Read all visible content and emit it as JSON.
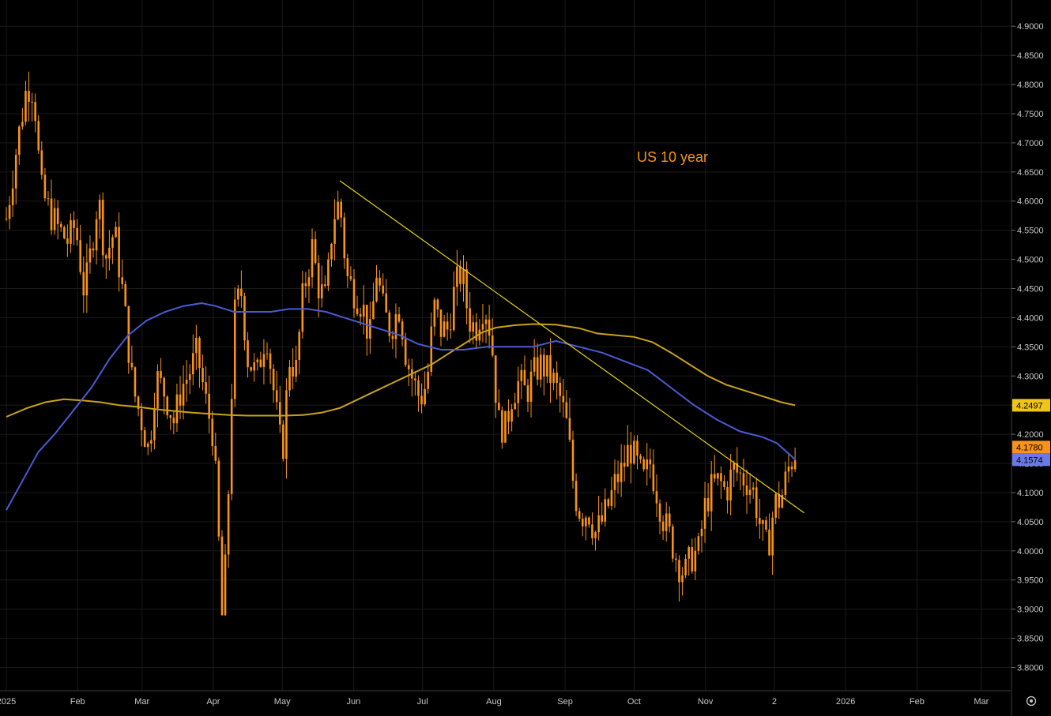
{
  "chart_data": {
    "type": "candlestick",
    "annotation": "US 10 year",
    "ylim": [
      3.76,
      4.945
    ],
    "y_ticks": [
      "4.9000",
      "4.8500",
      "4.8000",
      "4.7500",
      "4.7000",
      "4.6500",
      "4.6000",
      "4.5500",
      "4.5000",
      "4.4500",
      "4.4000",
      "4.3500",
      "4.3000",
      "4.2500",
      "4.2000",
      "4.1500",
      "4.1000",
      "4.0500",
      "4.0000",
      "3.9500",
      "3.9000",
      "3.8500",
      "3.8000"
    ],
    "x_ticks": [
      "2025",
      "Feb",
      "Mar",
      "Apr",
      "May",
      "Jun",
      "Jul",
      "Aug",
      "Sep",
      "Oct",
      "Nov",
      "2",
      "2026",
      "Feb",
      "Mar"
    ],
    "x_tick_days": [
      1,
      32,
      60,
      91,
      121,
      152,
      182,
      213,
      244,
      274,
      305,
      335,
      366,
      397,
      425
    ],
    "x_range_days": [
      1,
      450
    ],
    "price_anchors": [
      [
        1,
        4.57
      ],
      [
        5,
        4.68
      ],
      [
        10,
        4.8
      ],
      [
        13,
        4.79
      ],
      [
        16,
        4.62
      ],
      [
        20,
        4.58
      ],
      [
        24,
        4.55
      ],
      [
        28,
        4.53
      ],
      [
        31,
        4.56
      ],
      [
        35,
        4.44
      ],
      [
        38,
        4.52
      ],
      [
        41,
        4.61
      ],
      [
        44,
        4.5
      ],
      [
        48,
        4.55
      ],
      [
        52,
        4.43
      ],
      [
        56,
        4.28
      ],
      [
        60,
        4.22
      ],
      [
        63,
        4.17
      ],
      [
        66,
        4.3
      ],
      [
        70,
        4.27
      ],
      [
        74,
        4.22
      ],
      [
        77,
        4.28
      ],
      [
        80,
        4.3
      ],
      [
        84,
        4.34
      ],
      [
        88,
        4.25
      ],
      [
        91,
        4.2
      ],
      [
        93,
        4.05
      ],
      [
        95,
        3.87
      ],
      [
        97,
        4.03
      ],
      [
        100,
        4.4
      ],
      [
        103,
        4.45
      ],
      [
        106,
        4.33
      ],
      [
        110,
        4.3
      ],
      [
        114,
        4.38
      ],
      [
        118,
        4.25
      ],
      [
        121,
        4.16
      ],
      [
        124,
        4.33
      ],
      [
        127,
        4.31
      ],
      [
        130,
        4.44
      ],
      [
        134,
        4.52
      ],
      [
        137,
        4.45
      ],
      [
        140,
        4.43
      ],
      [
        143,
        4.57
      ],
      [
        146,
        4.6
      ],
      [
        149,
        4.47
      ],
      [
        153,
        4.44
      ],
      [
        156,
        4.42
      ],
      [
        159,
        4.36
      ],
      [
        162,
        4.48
      ],
      [
        165,
        4.41
      ],
      [
        168,
        4.38
      ],
      [
        172,
        4.42
      ],
      [
        175,
        4.33
      ],
      [
        178,
        4.29
      ],
      [
        181,
        4.26
      ],
      [
        184,
        4.29
      ],
      [
        187,
        4.42
      ],
      [
        190,
        4.38
      ],
      [
        193,
        4.38
      ],
      [
        196,
        4.45
      ],
      [
        199,
        4.48
      ],
      [
        202,
        4.4
      ],
      [
        205,
        4.38
      ],
      [
        208,
        4.42
      ],
      [
        210,
        4.41
      ],
      [
        212,
        4.36
      ],
      [
        215,
        4.22
      ],
      [
        218,
        4.21
      ],
      [
        221,
        4.27
      ],
      [
        224,
        4.29
      ],
      [
        227,
        4.27
      ],
      [
        230,
        4.3
      ],
      [
        233,
        4.32
      ],
      [
        236,
        4.31
      ],
      [
        239,
        4.29
      ],
      [
        242,
        4.26
      ],
      [
        245,
        4.21
      ],
      [
        248,
        4.1
      ],
      [
        251,
        4.06
      ],
      [
        254,
        4.07
      ],
      [
        257,
        4.03
      ],
      [
        260,
        4.05
      ],
      [
        263,
        4.08
      ],
      [
        266,
        4.12
      ],
      [
        269,
        4.14
      ],
      [
        272,
        4.18
      ],
      [
        275,
        4.15
      ],
      [
        278,
        4.12
      ],
      [
        281,
        4.15
      ],
      [
        284,
        4.1
      ],
      [
        287,
        4.05
      ],
      [
        290,
        4.02
      ],
      [
        293,
        3.98
      ],
      [
        296,
        3.96
      ],
      [
        299,
        3.99
      ],
      [
        302,
        4.0
      ],
      [
        305,
        4.08
      ],
      [
        308,
        4.11
      ],
      [
        311,
        4.12
      ],
      [
        314,
        4.1
      ],
      [
        317,
        4.14
      ],
      [
        320,
        4.13
      ],
      [
        323,
        4.12
      ],
      [
        326,
        4.1
      ],
      [
        329,
        4.04
      ],
      [
        332,
        4.0
      ],
      [
        335,
        4.08
      ],
      [
        338,
        4.09
      ],
      [
        341,
        4.14
      ],
      [
        344,
        4.17
      ]
    ],
    "ma_blue": [
      [
        1,
        4.07
      ],
      [
        8,
        4.12
      ],
      [
        15,
        4.17
      ],
      [
        22,
        4.2
      ],
      [
        30,
        4.24
      ],
      [
        38,
        4.28
      ],
      [
        46,
        4.33
      ],
      [
        54,
        4.37
      ],
      [
        62,
        4.395
      ],
      [
        70,
        4.41
      ],
      [
        78,
        4.42
      ],
      [
        86,
        4.425
      ],
      [
        92,
        4.42
      ],
      [
        100,
        4.41
      ],
      [
        108,
        4.41
      ],
      [
        116,
        4.41
      ],
      [
        124,
        4.415
      ],
      [
        132,
        4.415
      ],
      [
        140,
        4.41
      ],
      [
        148,
        4.4
      ],
      [
        156,
        4.39
      ],
      [
        164,
        4.38
      ],
      [
        172,
        4.37
      ],
      [
        180,
        4.355
      ],
      [
        190,
        4.345
      ],
      [
        200,
        4.345
      ],
      [
        210,
        4.35
      ],
      [
        220,
        4.35
      ],
      [
        230,
        4.35
      ],
      [
        240,
        4.36
      ],
      [
        250,
        4.35
      ],
      [
        260,
        4.34
      ],
      [
        270,
        4.325
      ],
      [
        280,
        4.31
      ],
      [
        290,
        4.28
      ],
      [
        300,
        4.25
      ],
      [
        310,
        4.225
      ],
      [
        320,
        4.205
      ],
      [
        330,
        4.195
      ],
      [
        336,
        4.185
      ],
      [
        344,
        4.157
      ]
    ],
    "ma_gold": [
      [
        1,
        4.23
      ],
      [
        10,
        4.245
      ],
      [
        18,
        4.255
      ],
      [
        26,
        4.26
      ],
      [
        34,
        4.258
      ],
      [
        42,
        4.255
      ],
      [
        50,
        4.25
      ],
      [
        58,
        4.247
      ],
      [
        66,
        4.243
      ],
      [
        74,
        4.24
      ],
      [
        82,
        4.237
      ],
      [
        90,
        4.235
      ],
      [
        98,
        4.233
      ],
      [
        106,
        4.232
      ],
      [
        114,
        4.232
      ],
      [
        122,
        4.232
      ],
      [
        130,
        4.233
      ],
      [
        138,
        4.237
      ],
      [
        146,
        4.245
      ],
      [
        154,
        4.26
      ],
      [
        162,
        4.275
      ],
      [
        170,
        4.29
      ],
      [
        178,
        4.305
      ],
      [
        186,
        4.32
      ],
      [
        194,
        4.34
      ],
      [
        202,
        4.36
      ],
      [
        208,
        4.375
      ],
      [
        214,
        4.383
      ],
      [
        222,
        4.387
      ],
      [
        230,
        4.389
      ],
      [
        240,
        4.388
      ],
      [
        250,
        4.382
      ],
      [
        258,
        4.373
      ],
      [
        266,
        4.37
      ],
      [
        274,
        4.367
      ],
      [
        282,
        4.358
      ],
      [
        290,
        4.34
      ],
      [
        298,
        4.32
      ],
      [
        306,
        4.3
      ],
      [
        314,
        4.285
      ],
      [
        322,
        4.275
      ],
      [
        330,
        4.265
      ],
      [
        338,
        4.255
      ],
      [
        344,
        4.2497
      ]
    ],
    "trendline": [
      [
        146,
        4.635
      ],
      [
        348,
        4.065
      ]
    ],
    "last_values": {
      "gold_ma": "4.2497",
      "price": "4.1780",
      "blue_ma": "4.1574"
    },
    "colors": {
      "background": "#000000",
      "candles": "#f7931a",
      "ma_blue": "#4a5bd4",
      "ma_gold": "#c9a21a",
      "trendline": "#e8d21a",
      "grid": "#1a1a1a",
      "axis_text": "#c8c8c8"
    }
  }
}
